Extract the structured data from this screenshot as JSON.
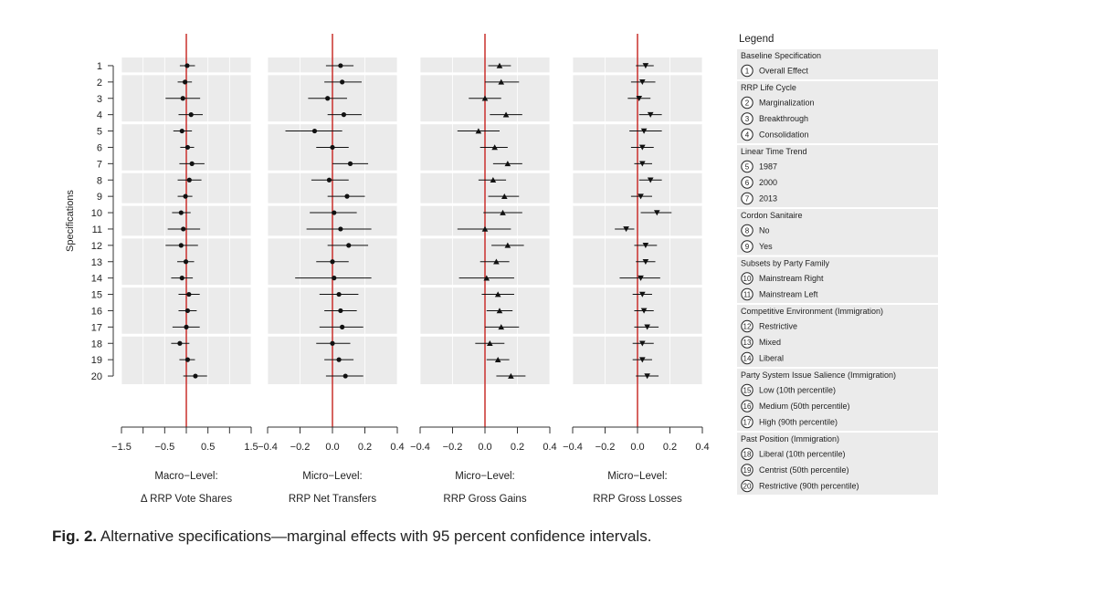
{
  "chart_data": {
    "type": "scatter",
    "title": "Alternative specifications—marginal effects with 95 percent confidence intervals",
    "ylabel": "Specifications",
    "specifications": [
      "1",
      "2",
      "3",
      "4",
      "5",
      "6",
      "7",
      "8",
      "9",
      "10",
      "11",
      "12",
      "13",
      "14",
      "15",
      "16",
      "17",
      "18",
      "19",
      "20"
    ],
    "panels": [
      {
        "title_line1": "Macro-Level:",
        "title_line2": "Δ RRP Vote Shares",
        "marker": "circle",
        "xlim": [
          -1.5,
          1.5
        ],
        "ticks": [
          "-1.5",
          "-0.5",
          "0.5",
          "1.5"
        ],
        "tick_values": [
          -1.5,
          -0.5,
          0.5,
          1.5
        ],
        "minor_ticks": [
          -1.0,
          0.0,
          1.0
        ],
        "estimates": [
          0.02,
          -0.03,
          -0.08,
          0.11,
          -0.1,
          0.03,
          0.13,
          0.07,
          -0.02,
          -0.12,
          -0.07,
          -0.12,
          -0.01,
          -0.1,
          0.06,
          0.03,
          0.0,
          -0.15,
          0.03,
          0.21
        ],
        "ci_low": [
          -0.15,
          -0.2,
          -0.48,
          -0.18,
          -0.3,
          -0.14,
          -0.16,
          -0.2,
          -0.2,
          -0.33,
          -0.43,
          -0.48,
          -0.21,
          -0.35,
          -0.18,
          -0.18,
          -0.32,
          -0.35,
          -0.16,
          -0.07
        ],
        "ci_high": [
          0.2,
          0.13,
          0.32,
          0.38,
          0.13,
          0.18,
          0.42,
          0.35,
          0.14,
          0.1,
          0.32,
          0.27,
          0.18,
          0.15,
          0.31,
          0.24,
          0.31,
          0.07,
          0.2,
          0.48
        ]
      },
      {
        "title_line1": "Micro-Level:",
        "title_line2": "RRP Net Transfers",
        "marker": "circle",
        "xlim": [
          -0.4,
          0.4
        ],
        "ticks": [
          "-0.4",
          "-0.2",
          "0.0",
          "0.2",
          "0.4"
        ],
        "tick_values": [
          -0.4,
          -0.2,
          0.0,
          0.2,
          0.4
        ],
        "minor_ticks": [],
        "estimates": [
          0.05,
          0.06,
          -0.03,
          0.07,
          -0.11,
          0.0,
          0.11,
          -0.02,
          0.09,
          0.01,
          0.05,
          0.1,
          0.0,
          0.01,
          0.04,
          0.05,
          0.06,
          0.0,
          0.04,
          0.08
        ],
        "ci_low": [
          -0.04,
          -0.05,
          -0.15,
          -0.03,
          -0.29,
          -0.1,
          0.0,
          -0.13,
          -0.03,
          -0.14,
          -0.16,
          -0.03,
          -0.1,
          -0.23,
          -0.08,
          -0.05,
          -0.08,
          -0.1,
          -0.05,
          -0.04
        ],
        "ci_high": [
          0.13,
          0.18,
          0.09,
          0.18,
          0.06,
          0.1,
          0.22,
          0.1,
          0.2,
          0.15,
          0.24,
          0.22,
          0.1,
          0.24,
          0.16,
          0.15,
          0.19,
          0.11,
          0.13,
          0.19
        ]
      },
      {
        "title_line1": "Micro-Level:",
        "title_line2": "RRP Gross Gains",
        "marker": "triangle-up",
        "xlim": [
          -0.4,
          0.4
        ],
        "ticks": [
          "-0.4",
          "-0.2",
          "0.0",
          "0.2",
          "0.4"
        ],
        "tick_values": [
          -0.4,
          -0.2,
          0.0,
          0.2,
          0.4
        ],
        "minor_ticks": [],
        "estimates": [
          0.09,
          0.1,
          0.0,
          0.13,
          -0.04,
          0.06,
          0.14,
          0.05,
          0.12,
          0.11,
          0.0,
          0.14,
          0.07,
          0.01,
          0.08,
          0.09,
          0.1,
          0.03,
          0.08,
          0.16
        ],
        "ci_low": [
          0.02,
          0.0,
          -0.1,
          0.03,
          -0.17,
          -0.03,
          0.05,
          -0.04,
          0.02,
          -0.01,
          -0.17,
          0.04,
          -0.03,
          -0.16,
          -0.02,
          0.01,
          0.0,
          -0.06,
          0.01,
          0.07
        ],
        "ci_high": [
          0.16,
          0.21,
          0.1,
          0.23,
          0.09,
          0.14,
          0.23,
          0.13,
          0.21,
          0.23,
          0.16,
          0.24,
          0.15,
          0.18,
          0.18,
          0.17,
          0.21,
          0.12,
          0.15,
          0.25
        ]
      },
      {
        "title_line1": "Micro-Level:",
        "title_line2": "RRP Gross Losses",
        "marker": "triangle-down",
        "xlim": [
          -0.4,
          0.4
        ],
        "ticks": [
          "-0.4",
          "-0.2",
          "0.0",
          "0.2",
          "0.4"
        ],
        "tick_values": [
          -0.4,
          -0.2,
          0.0,
          0.2,
          0.4
        ],
        "minor_ticks": [],
        "estimates": [
          0.05,
          0.03,
          0.01,
          0.08,
          0.04,
          0.03,
          0.03,
          0.08,
          0.02,
          0.12,
          -0.07,
          0.05,
          0.05,
          0.02,
          0.03,
          0.04,
          0.06,
          0.03,
          0.03,
          0.06
        ],
        "ci_low": [
          -0.01,
          -0.04,
          -0.06,
          0.01,
          -0.05,
          -0.04,
          -0.02,
          0.01,
          -0.04,
          0.02,
          -0.14,
          -0.02,
          -0.01,
          -0.11,
          -0.03,
          -0.02,
          -0.02,
          -0.03,
          -0.03,
          -0.01
        ],
        "ci_high": [
          0.1,
          0.11,
          0.08,
          0.15,
          0.15,
          0.1,
          0.09,
          0.15,
          0.09,
          0.21,
          -0.02,
          0.12,
          0.11,
          0.14,
          0.09,
          0.1,
          0.13,
          0.1,
          0.09,
          0.13
        ]
      }
    ]
  },
  "legend": {
    "title": "Legend",
    "groups": [
      {
        "header": "Baseline Specification",
        "items": [
          {
            "num": "1",
            "label": "Overall Effect"
          }
        ]
      },
      {
        "header": "RRP Life Cycle",
        "items": [
          {
            "num": "2",
            "label": "Marginalization"
          },
          {
            "num": "3",
            "label": "Breakthrough"
          },
          {
            "num": "4",
            "label": "Consolidation"
          }
        ]
      },
      {
        "header": "Linear Time Trend",
        "items": [
          {
            "num": "5",
            "label": "1987"
          },
          {
            "num": "6",
            "label": "2000"
          },
          {
            "num": "7",
            "label": "2013"
          }
        ]
      },
      {
        "header": "Cordon Sanitaire",
        "items": [
          {
            "num": "8",
            "label": "No"
          },
          {
            "num": "9",
            "label": "Yes"
          }
        ]
      },
      {
        "header": "Subsets by Party Family",
        "items": [
          {
            "num": "10",
            "label": "Mainstream Right"
          },
          {
            "num": "11",
            "label": "Mainstream Left"
          }
        ]
      },
      {
        "header": "Competitive Environment (Immigration)",
        "items": [
          {
            "num": "12",
            "label": "Restrictive"
          },
          {
            "num": "13",
            "label": "Mixed"
          },
          {
            "num": "14",
            "label": "Liberal"
          }
        ]
      },
      {
        "header": "Party System Issue Salience  (Immigration)",
        "items": [
          {
            "num": "15",
            "label": "Low (10th percentile)"
          },
          {
            "num": "16",
            "label": "Medium (50th percentile)"
          },
          {
            "num": "17",
            "label": "High (90th percentile)"
          }
        ]
      },
      {
        "header": "Past Position (Immigration)",
        "items": [
          {
            "num": "18",
            "label": "Liberal (10th percentile)"
          },
          {
            "num": "19",
            "label": "Centrist (50th percentile)"
          },
          {
            "num": "20",
            "label": "Restrictive (90th percentile)"
          }
        ]
      }
    ]
  },
  "caption": {
    "label": "Fig. 2.",
    "text": "Alternative specifications—marginal effects with 95 percent confidence intervals."
  },
  "colors": {
    "panel_bg": "#ebebeb",
    "band_sep": "#ffffff",
    "grid": "#ffffff",
    "zero_line": "#c9302c",
    "marker": "#111111",
    "legend_bg": "#ebebeb"
  }
}
